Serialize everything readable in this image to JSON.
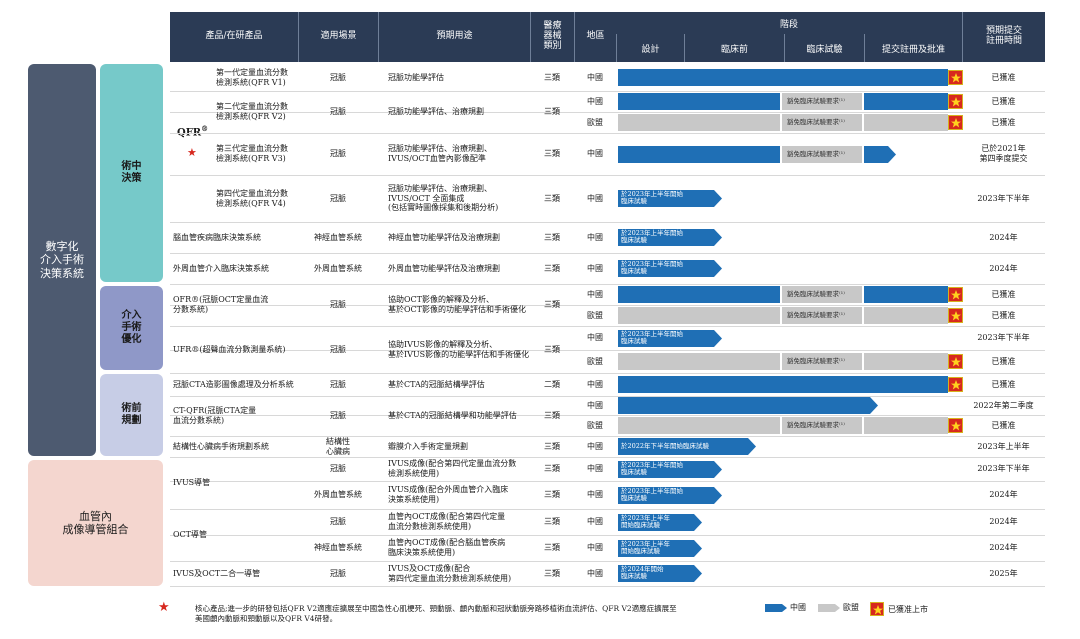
{
  "headers": {
    "product": "產品/在研產品",
    "scenario": "適用場景",
    "usage": "預期用途",
    "device_class": "醫療\n器械\n類別",
    "region": "地區",
    "stage": "階段",
    "stages": [
      "設計",
      "臨床前",
      "臨床試驗",
      "提交註冊及批准"
    ],
    "expected": "預期提交\n註冊時間"
  },
  "categories": [
    {
      "label": "數字化\n介入手術\n決策系統"
    },
    {
      "label": "血管內\n成像導管組合"
    }
  ],
  "subcategories": [
    {
      "label": "術中\n決策"
    },
    {
      "label": "介入\n手術\n優化"
    },
    {
      "label": "術前\n規劃"
    }
  ],
  "qfr_label": "QFR",
  "qfr_sup": "®",
  "star": "★",
  "rows": [
    {
      "product": "第一代定量血流分數\n檢測系統(QFR V1)",
      "scenario": "冠脈",
      "usage": "冠脈功能學評估",
      "cls": "三類",
      "region": "中國",
      "expected": "已獲准"
    },
    {
      "product": "第二代定量血流分數\n檢測系統(QFR V2)",
      "scenario": "冠脈",
      "usage": "冠脈功能學評估、治療規劃",
      "cls": "三類",
      "region": "中國",
      "expected": "已獲准"
    },
    {
      "product": "",
      "scenario": "",
      "usage": "",
      "cls": "",
      "region": "歐盟",
      "expected": "已獲准"
    },
    {
      "product": "第三代定量血流分數\n檢測系統(QFR V3)",
      "scenario": "冠脈",
      "usage": "冠脈功能學評估、治療規劃、\nIVUS/OCT血管內影像配準",
      "cls": "三類",
      "region": "中國",
      "expected": "已於2021年\n第四季度提交"
    },
    {
      "product": "第四代定量血流分數\n檢測系統(QFR V4)",
      "scenario": "冠脈",
      "usage": "冠脈功能學評估、治療規劃、\nIVUS/OCT 全面集成\n(包括實時圖像採集和後期分析)",
      "cls": "三類",
      "region": "中國",
      "expected": "2023年下半年"
    },
    {
      "product": "腦血管疾病臨床決策系統",
      "scenario": "神經血管系統",
      "usage": "神經血管功能學評估及治療規劃",
      "cls": "三類",
      "region": "中國",
      "expected": "2024年"
    },
    {
      "product": "外周血管介入臨床決策系統",
      "scenario": "外周血管系統",
      "usage": "外周血管功能學評估及治療規劃",
      "cls": "三類",
      "region": "中國",
      "expected": "2024年"
    },
    {
      "product": "OFR®(冠脈OCT定量血流\n分數系統)",
      "scenario": "冠脈",
      "usage": "協助OCT影像的解釋及分析、\n基於OCT影像的功能學評估和手術優化",
      "cls": "三類",
      "region": "中國",
      "expected": "已獲准"
    },
    {
      "product": "",
      "scenario": "",
      "usage": "",
      "cls": "",
      "region": "歐盟",
      "expected": "已獲准"
    },
    {
      "product": "UFR®(超聲血流分數測量系統)",
      "scenario": "冠脈",
      "usage": "協助IVUS影像的解釋及分析、\n基於IVUS影像的功能學評估和手術優化",
      "cls": "三類",
      "region": "中國",
      "expected": "2023年下半年"
    },
    {
      "product": "",
      "scenario": "",
      "usage": "",
      "cls": "",
      "region": "歐盟",
      "expected": "已獲准"
    },
    {
      "product": "冠脈CTA造影圖像處理及分析系統",
      "scenario": "冠脈",
      "usage": "基於CTA的冠脈結構學評估",
      "cls": "二類",
      "region": "中國",
      "expected": "已獲准"
    },
    {
      "product": "CT-QFR(冠脈CTA定量\n血流分數系統)",
      "scenario": "冠脈",
      "usage": "基於CTA的冠脈結構學和功能學評估",
      "cls": "三類",
      "region": "中國",
      "expected": "2022年第二季度"
    },
    {
      "product": "",
      "scenario": "",
      "usage": "",
      "cls": "",
      "region": "歐盟",
      "expected": "已獲准"
    },
    {
      "product": "結構性心臟病手術規劃系統",
      "scenario": "結構性\n心臟病",
      "usage": "瓣膜介入手術定量規劃",
      "cls": "三類",
      "region": "中國",
      "expected": "2023年上半年"
    },
    {
      "product": "IVUS導管",
      "scenario": "冠脈",
      "usage": "IVUS成像(配合第四代定量血流分數\n檢測系統使用)",
      "cls": "三類",
      "region": "中國",
      "expected": "2023年下半年"
    },
    {
      "product": "",
      "scenario": "外周血管系統",
      "usage": "IVUS成像(配合外周血管介入臨床\n決策系統使用)",
      "cls": "三類",
      "region": "中國",
      "expected": "2024年"
    },
    {
      "product": "OCT導管",
      "scenario": "冠脈",
      "usage": "血管內OCT成像(配合第四代定量\n血流分數檢測系統使用)",
      "cls": "三類",
      "region": "中國",
      "expected": "2024年"
    },
    {
      "product": "",
      "scenario": "神經血管系統",
      "usage": "血管內OCT成像(配合腦血管疾病\n臨床決策系統使用)",
      "cls": "三類",
      "region": "中國",
      "expected": "2024年"
    },
    {
      "product": "IVUS及OCT二合一導管",
      "scenario": "冠脈",
      "usage": "IVUS及OCT成像(配合\n第四代定量血流分數檢測系統使用)",
      "cls": "三類",
      "region": "中國",
      "expected": "2025年"
    }
  ],
  "bars": {
    "exempt": "豁免臨床試驗要求⁽¹⁾",
    "h2023": "於2023年上半年開始\n臨床試驗",
    "h2022": "於2022年下半年開始臨床試驗",
    "h2023b": "於2023年上半年\n開始臨床試驗",
    "h2024": "於2024年開始\n臨床試驗"
  },
  "footnote": "核心產品;進一步的研發包括QFR V2適應症擴展至中國急性心肌梗死、頸動脈、顱內動脈和冠狀動脈旁路移植術血流評估、QFR V2適應症擴展至\n美國顱內動脈和頸動脈以及QFR V4研發。",
  "legend": {
    "china": "中國",
    "eu": "歐盟",
    "approved": "已獲准上市"
  },
  "colors": {
    "header": "#2b3b55",
    "china": "#1f6fb5",
    "eu": "#c8c8c8",
    "cat1": "#4d5a70",
    "cat2": "#f4d6cf",
    "sub1": "#76c9c9",
    "sub2": "#8f98c8",
    "sub3": "#c7cde6",
    "flag": "#d7281e"
  }
}
